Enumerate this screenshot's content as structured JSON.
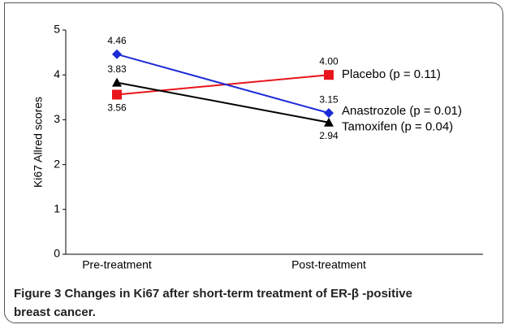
{
  "chart_data": {
    "type": "line",
    "ylabel": "Ki67 Allred scores",
    "categories": [
      "Pre-treatment",
      "Post-treatment"
    ],
    "series": [
      {
        "name": "Placebo (p = 0.11)",
        "color": "#e8151b",
        "marker": "square",
        "values": [
          3.56,
          4.0
        ],
        "value_labels": [
          "3.56",
          "4.00"
        ]
      },
      {
        "name": "Anastrozole (p = 0.01)",
        "color": "#1c2bd6",
        "marker": "diamond",
        "values": [
          4.46,
          3.15
        ],
        "value_labels": [
          "4.46",
          "3.15"
        ]
      },
      {
        "name": "Tamoxifen (p = 0.04)",
        "color": "#000000",
        "marker": "triangle",
        "values": [
          3.83,
          2.94
        ],
        "value_labels": [
          "3.83",
          "2.94"
        ]
      }
    ],
    "ylim": [
      0,
      5
    ],
    "yticks": [
      0,
      1,
      2,
      3,
      4,
      5
    ],
    "caption_label": "Figure 3",
    "caption": "Changes in Ki67 after short-term treatment of ER-β -positive breast cancer."
  }
}
